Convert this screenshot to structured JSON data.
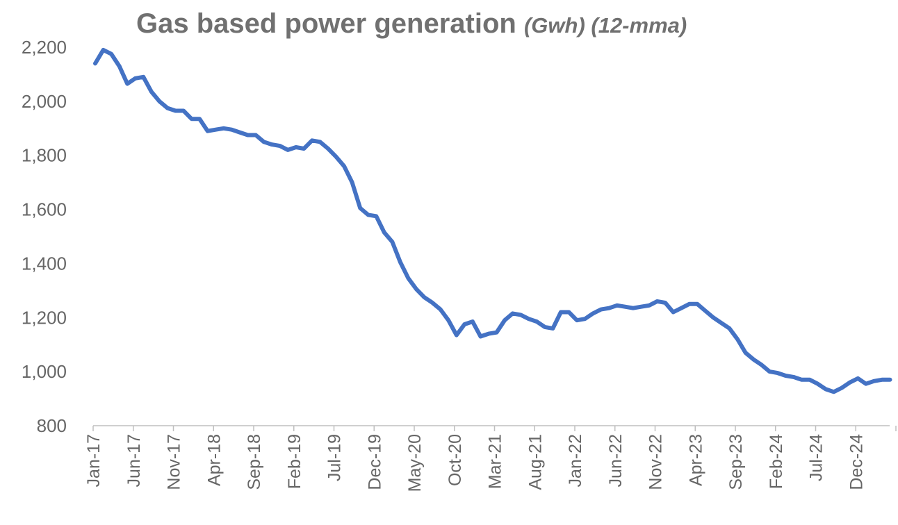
{
  "chart_data": {
    "type": "line",
    "title": "Gas based power generation",
    "title_units": "(Gwh) (12-mma)",
    "xlabel": "",
    "ylabel": "",
    "ylim": [
      800,
      2200
    ],
    "yticks": [
      800,
      1000,
      1200,
      1400,
      1600,
      1800,
      2000,
      2200
    ],
    "ytick_labels": [
      "800",
      "1,000",
      "1,200",
      "1,400",
      "1,600",
      "1,800",
      "2,000",
      "2,200"
    ],
    "xtick_labels": [
      "Jan-17",
      "Jun-17",
      "Nov-17",
      "Apr-18",
      "Sep-18",
      "Feb-19",
      "Jul-19",
      "Dec-19",
      "May-20",
      "Oct-20",
      "Mar-21",
      "Aug-21",
      "Jan-22",
      "Jun-22",
      "Nov-22",
      "Apr-23",
      "Sep-23",
      "Feb-24",
      "Jul-24",
      "Dec-24"
    ],
    "grid": false,
    "line_color": "#4472C4",
    "series": [
      {
        "name": "",
        "start": "Jan-17",
        "frequency": "monthly",
        "values": [
          2140,
          2190,
          2175,
          2130,
          2065,
          2085,
          2090,
          2035,
          2000,
          1975,
          1965,
          1965,
          1935,
          1935,
          1890,
          1895,
          1900,
          1895,
          1885,
          1875,
          1875,
          1850,
          1840,
          1835,
          1820,
          1830,
          1825,
          1855,
          1850,
          1825,
          1795,
          1760,
          1700,
          1605,
          1580,
          1575,
          1515,
          1480,
          1405,
          1345,
          1305,
          1275,
          1255,
          1230,
          1190,
          1135,
          1175,
          1185,
          1130,
          1140,
          1145,
          1190,
          1215,
          1210,
          1195,
          1185,
          1165,
          1160,
          1220,
          1220,
          1190,
          1195,
          1215,
          1230,
          1235,
          1245,
          1240,
          1235,
          1240,
          1245,
          1260,
          1255,
          1220,
          1235,
          1250,
          1250,
          1225,
          1200,
          1180,
          1160,
          1120,
          1070,
          1045,
          1025,
          1000,
          995,
          985,
          980,
          970,
          970,
          955,
          935,
          925,
          940,
          960,
          975,
          955,
          965,
          970,
          970
        ]
      }
    ]
  }
}
